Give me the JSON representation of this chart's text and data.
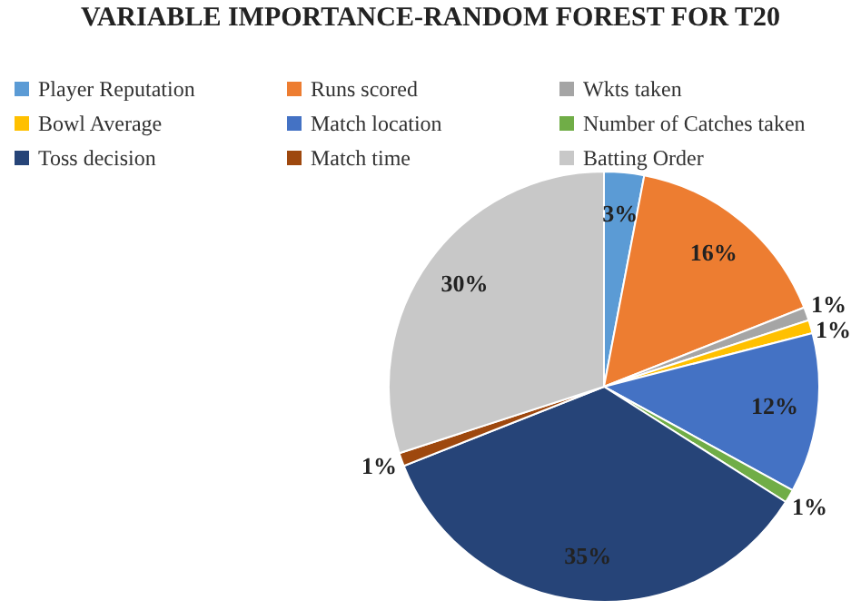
{
  "chart_data": {
    "type": "pie",
    "title": "VARIABLE IMPORTANCE-RANDOM FOREST FOR T20",
    "categories": [
      "Player Reputation",
      "Runs scored",
      "Wkts taken",
      "Bowl Average",
      "Match location",
      "Number of Catches taken",
      "Toss decision",
      "Match time",
      "Batting Order"
    ],
    "values": [
      3,
      16,
      1,
      1,
      12,
      1,
      35,
      1,
      30
    ],
    "value_labels": [
      "3%",
      "16%",
      "1%",
      "1%",
      "12%",
      "1%",
      "35%",
      "1%",
      "30%"
    ],
    "colors": [
      "#5b9bd5",
      "#ed7d31",
      "#a5a5a5",
      "#ffc000",
      "#4472c4",
      "#70ad47",
      "#264478",
      "#9e480e",
      "#c8c8c8"
    ],
    "legend": "top"
  }
}
